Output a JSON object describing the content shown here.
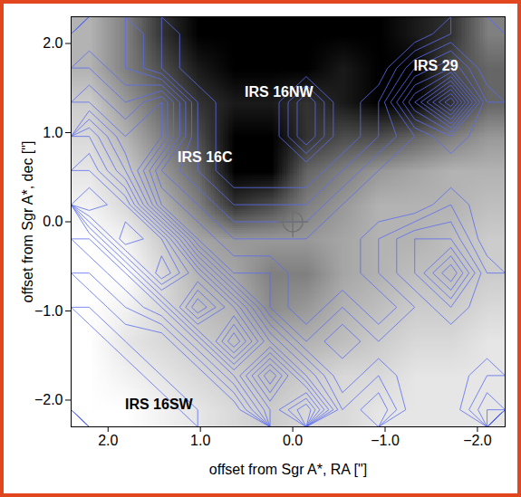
{
  "chart_data": {
    "type": "contour",
    "xlabel": "offset from Sgr A*, RA [\"]",
    "ylabel": "offset from Sgr A*, dec [\"]",
    "xlim": [
      2.4,
      -2.3
    ],
    "ylim": [
      -2.3,
      2.3
    ],
    "xticks": [
      2,
      1,
      0,
      -1,
      -2
    ],
    "yticks": [
      -2,
      -1,
      0,
      1,
      2
    ],
    "image": {
      "color": "#000000",
      "range": [
        0,
        1
      ],
      "values": [
        [
          0.3,
          0.5,
          0.8,
          1,
          1,
          1,
          1,
          1,
          1,
          0.9,
          0.8,
          0.5
        ],
        [
          0.3,
          0.5,
          0.7,
          0.9,
          1,
          1,
          1,
          0.9,
          1,
          1,
          0.7,
          0.6
        ],
        [
          0.2,
          0.4,
          0.6,
          0.8,
          0.9,
          0.9,
          0.8,
          0.9,
          1,
          1,
          0.8,
          0.6
        ],
        [
          0.15,
          0.3,
          0.5,
          0.7,
          1,
          1,
          0.8,
          0.7,
          0.7,
          0.6,
          0.5,
          0.4
        ],
        [
          0.1,
          0.2,
          0.4,
          0.6,
          1,
          1,
          0.6,
          0.5,
          0.4,
          0.35,
          0.3,
          0.3
        ],
        [
          0.05,
          0.15,
          0.3,
          0.5,
          0.8,
          0.7,
          0.5,
          0.4,
          0.3,
          0.3,
          0.3,
          0.25
        ],
        [
          0,
          0.05,
          0.2,
          0.35,
          0.4,
          0.4,
          0.4,
          0.35,
          0.3,
          0.3,
          0.25,
          0.2
        ],
        [
          0,
          0,
          0.15,
          0.3,
          0.35,
          0.5,
          0.5,
          0.35,
          0.3,
          0.25,
          0.25,
          0.2
        ],
        [
          0,
          0.05,
          0.15,
          0.25,
          0.3,
          0.45,
          0.4,
          0.3,
          0.25,
          0.2,
          0.2,
          0.15
        ],
        [
          0,
          0.1,
          0.15,
          0.2,
          0.25,
          0.3,
          0.3,
          0.25,
          0.2,
          0.15,
          0.15,
          0.1
        ],
        [
          0,
          0.05,
          0.1,
          0.15,
          0.2,
          0.25,
          0.2,
          0.15,
          0.15,
          0.1,
          0.1,
          0.1
        ],
        [
          0,
          0,
          0.05,
          0.1,
          0.15,
          0.2,
          0.15,
          0.15,
          0.1,
          0.1,
          0.1,
          0.1
        ]
      ]
    },
    "contours": {
      "color": "#5a6cf0",
      "levels": [
        1.5,
        2,
        2.5,
        3,
        3.5,
        4,
        4.5,
        5,
        5.5,
        6,
        6.5,
        7,
        7.5,
        8,
        8.5
      ],
      "values": [
        [
          3,
          3,
          2,
          1,
          1,
          1,
          1,
          1,
          1,
          1,
          2,
          2
        ],
        [
          4,
          3,
          2,
          1,
          1,
          1,
          1,
          1,
          1,
          3,
          4,
          2
        ],
        [
          5,
          4,
          5,
          2,
          1,
          1,
          3,
          1,
          2,
          5,
          8,
          3
        ],
        [
          7,
          5,
          5,
          2,
          1,
          1,
          3,
          1,
          2,
          3,
          4,
          3
        ],
        [
          8,
          6,
          3,
          2,
          1,
          1,
          1,
          2,
          3,
          3,
          3,
          3
        ],
        [
          9,
          8,
          4,
          3,
          2,
          2,
          2,
          3,
          3,
          3,
          4,
          3
        ],
        [
          6,
          9,
          8,
          4,
          3,
          3,
          3,
          3,
          4,
          5,
          5,
          3
        ],
        [
          5,
          6,
          9,
          7,
          4,
          4,
          3,
          3,
          4,
          5,
          7,
          4
        ],
        [
          4,
          5,
          6,
          9,
          7,
          4,
          3,
          4,
          3,
          4,
          5,
          4
        ],
        [
          3,
          4,
          4,
          6,
          9,
          6,
          4,
          5,
          4,
          4,
          4,
          4
        ],
        [
          3,
          3,
          4,
          4,
          6,
          9,
          6,
          4,
          5,
          4,
          4,
          5
        ],
        [
          3,
          3,
          3,
          4,
          4,
          7,
          9,
          5,
          6,
          4,
          4,
          6
        ]
      ]
    },
    "points": [
      {
        "x": 0,
        "y": 0,
        "marker": "crosshair",
        "color": "#707070"
      }
    ],
    "annotations": [
      {
        "text": "IRS 29",
        "x": -1.55,
        "y": 1.75,
        "color": "#ffffff"
      },
      {
        "text": "IRS 16NW",
        "x": 0.15,
        "y": 1.45,
        "color": "#ffffff"
      },
      {
        "text": "IRS 16C",
        "x": 0.95,
        "y": 0.72,
        "color": "#ffffff"
      },
      {
        "text": "IRS 16SW",
        "x": 1.45,
        "y": -2.05,
        "color": "#000000"
      }
    ]
  }
}
